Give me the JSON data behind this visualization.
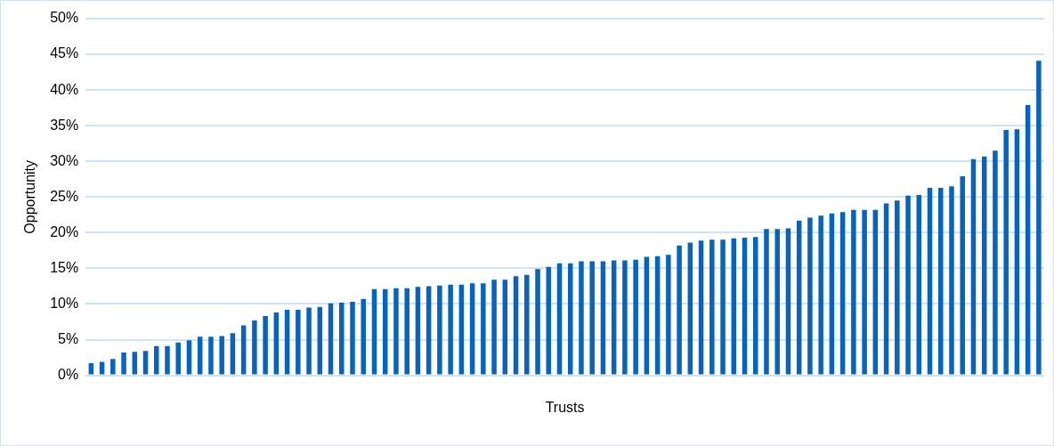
{
  "chart_data": {
    "type": "bar",
    "xlabel": "Trusts",
    "ylabel": "Opportunity",
    "categories": [
      null,
      null,
      null,
      null,
      null,
      null,
      null,
      null,
      null,
      null,
      null,
      null,
      null,
      null,
      null,
      null,
      null,
      null,
      null,
      null,
      null,
      null,
      null,
      null,
      null,
      null,
      null,
      null,
      null,
      null,
      null,
      null,
      null,
      null,
      null,
      null,
      null,
      null,
      null,
      null,
      null,
      null,
      null,
      null,
      null,
      null,
      null,
      null,
      null,
      null,
      null,
      null,
      null,
      null,
      null,
      null,
      null,
      null,
      null,
      null,
      null,
      null,
      null,
      null,
      null,
      null,
      null,
      null,
      null,
      null,
      null,
      null,
      null,
      null,
      null,
      null,
      null,
      null,
      null,
      null,
      null,
      null,
      null,
      null,
      null,
      null,
      null,
      null
    ],
    "values": [
      1.7,
      1.9,
      2.3,
      3.2,
      3.3,
      3.4,
      4.1,
      4.1,
      4.6,
      4.9,
      5.4,
      5.4,
      5.5,
      5.9,
      7.0,
      7.7,
      8.3,
      8.8,
      9.2,
      9.2,
      9.5,
      9.6,
      10.1,
      10.2,
      10.3,
      10.7,
      12.1,
      12.1,
      12.2,
      12.2,
      12.4,
      12.5,
      12.6,
      12.7,
      12.7,
      12.9,
      12.9,
      13.4,
      13.4,
      13.9,
      14.1,
      14.9,
      15.2,
      15.7,
      15.7,
      16.0,
      16.0,
      16.0,
      16.1,
      16.1,
      16.2,
      16.6,
      16.7,
      16.9,
      18.2,
      18.6,
      18.9,
      19.0,
      19.0,
      19.2,
      19.3,
      19.4,
      20.5,
      20.5,
      20.6,
      21.7,
      22.1,
      22.4,
      22.7,
      22.9,
      23.2,
      23.2,
      23.2,
      24.1,
      24.5,
      25.2,
      25.3,
      26.3,
      26.3,
      26.5,
      27.9,
      30.3,
      30.7,
      31.5,
      34.4,
      34.5,
      37.9,
      44.1
    ],
    "color": "#0563c1",
    "ylim": [
      0,
      50
    ],
    "yticks": [
      {
        "value": 0,
        "label": "0%"
      },
      {
        "value": 5,
        "label": "5%"
      },
      {
        "value": 10,
        "label": "10%"
      },
      {
        "value": 15,
        "label": "15%"
      },
      {
        "value": 20,
        "label": "20%"
      },
      {
        "value": 25,
        "label": "25%"
      },
      {
        "value": 30,
        "label": "30%"
      },
      {
        "value": 35,
        "label": "35%"
      },
      {
        "value": 40,
        "label": "40%"
      },
      {
        "value": 45,
        "label": "45%"
      },
      {
        "value": 50,
        "label": "50%"
      }
    ],
    "grid": "y"
  }
}
